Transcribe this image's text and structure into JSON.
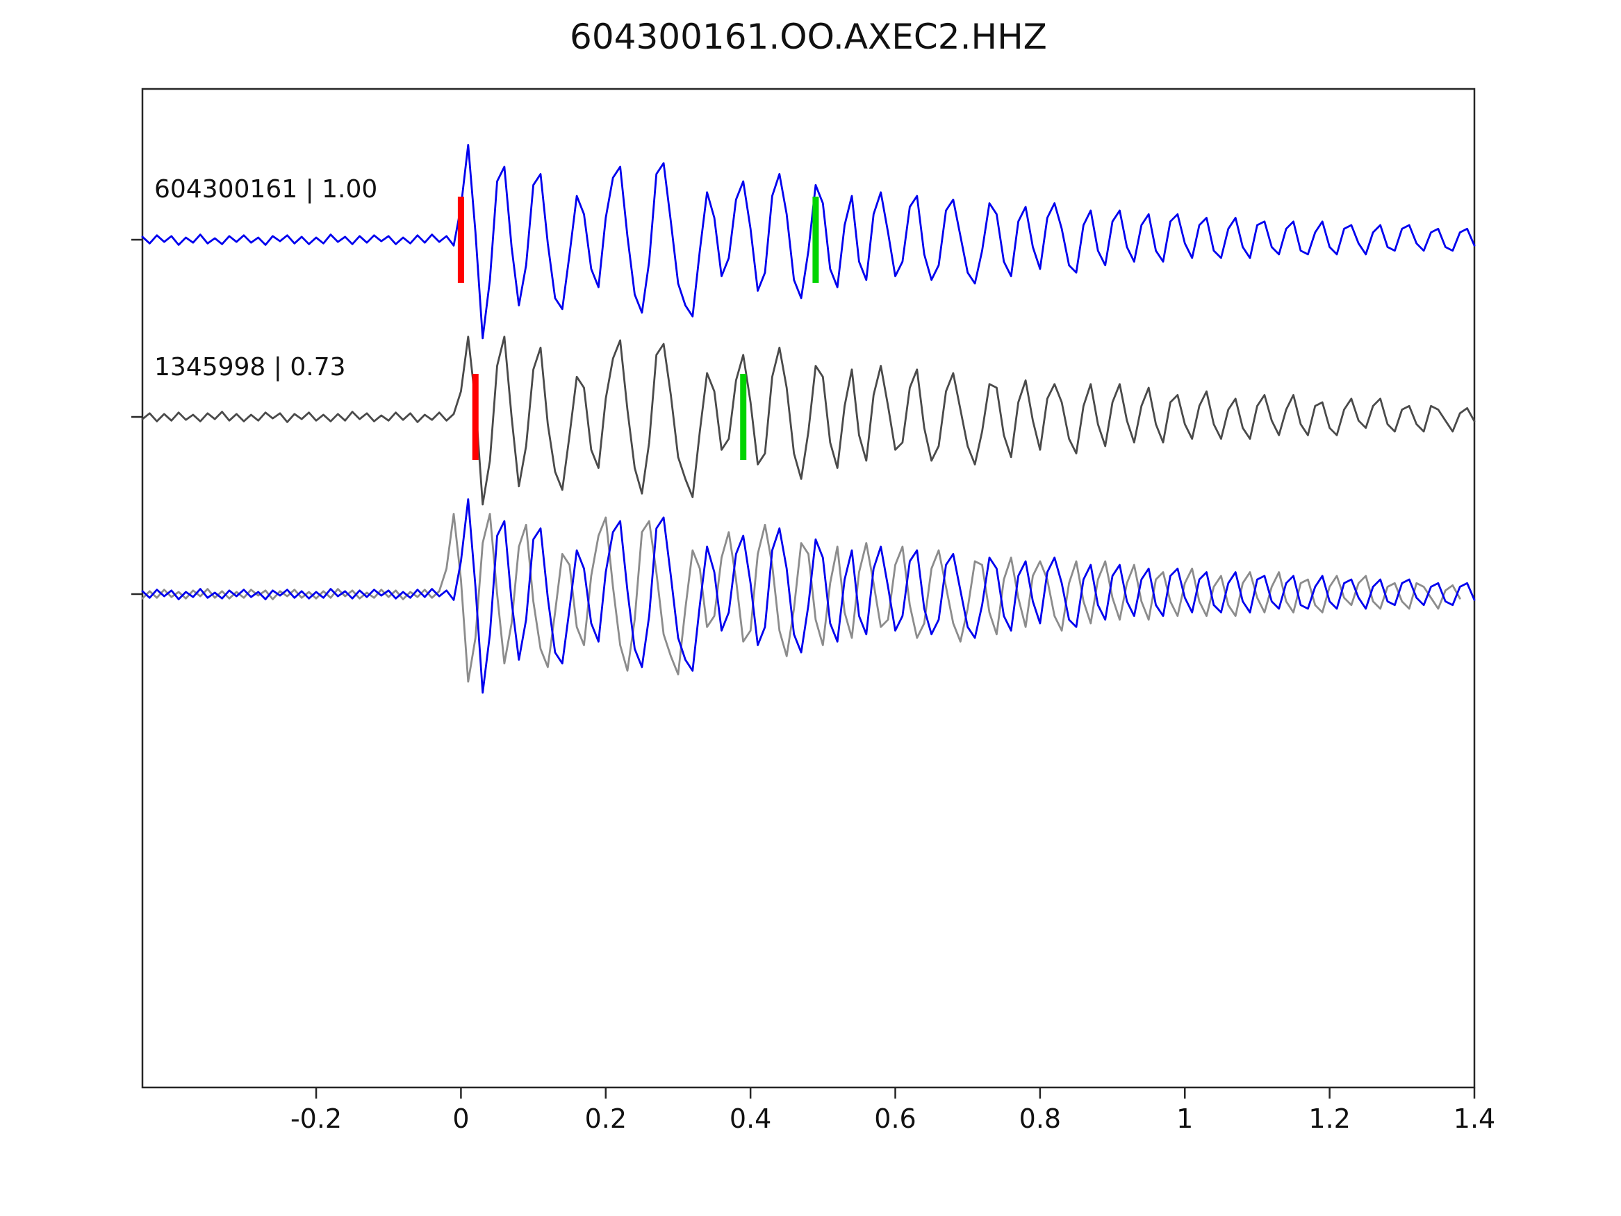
{
  "colors": {
    "trace_blue": "#0000ee",
    "trace_dark_gray": "#4a4a4a",
    "overlay_gray": "#8c8c8c",
    "pick_red": "#ff0000",
    "pick_green": "#00d400",
    "frame": "#262626",
    "text": "#111111"
  },
  "chart_data": {
    "type": "line",
    "title": "604300161.OO.AXEC2.HHZ",
    "xlabel": "",
    "ylabel": "",
    "grid": false,
    "legend": "none",
    "xlim": [
      -0.44,
      1.4
    ],
    "x_start": -0.44,
    "x_step": 0.01,
    "xticks": [
      -0.2,
      0,
      0.2,
      0.4,
      0.6,
      0.8,
      1,
      1.2,
      1.4
    ],
    "xtick_labels": [
      "-0.2",
      "0",
      "0.2",
      "0.4",
      "0.6",
      "0.8",
      "1",
      "1.2",
      "1.4"
    ],
    "rows": [
      {
        "trace": "604300161",
        "label": "604300161 | 1.00",
        "correlation": 1.0,
        "picks": [
          {
            "color": "red",
            "t": 0.0
          },
          {
            "color": "green",
            "t": 0.49
          }
        ]
      },
      {
        "trace": "1345998",
        "label": "1345998 | 0.73",
        "correlation": 0.73,
        "picks": [
          {
            "color": "red",
            "t": 0.02
          },
          {
            "color": "green",
            "t": 0.39
          }
        ]
      },
      {
        "trace": "overlay",
        "label": "",
        "align_shift": -0.02,
        "picks": []
      }
    ],
    "series": [
      {
        "name": "604300161",
        "color": "#0000ee",
        "values": [
          0.04,
          -0.05,
          0.06,
          -0.03,
          0.05,
          -0.07,
          0.03,
          -0.04,
          0.07,
          -0.05,
          0.02,
          -0.06,
          0.05,
          -0.03,
          0.06,
          -0.04,
          0.03,
          -0.07,
          0.05,
          -0.02,
          0.06,
          -0.05,
          0.04,
          -0.06,
          0.03,
          -0.05,
          0.07,
          -0.03,
          0.04,
          -0.06,
          0.05,
          -0.04,
          0.06,
          -0.02,
          0.05,
          -0.06,
          0.03,
          -0.05,
          0.06,
          -0.04,
          0.07,
          -0.03,
          0.05,
          -0.08,
          0.45,
          1.3,
          0.1,
          -1.35,
          -0.55,
          0.8,
          1.0,
          -0.1,
          -0.9,
          -0.35,
          0.75,
          0.9,
          -0.05,
          -0.8,
          -0.95,
          -0.2,
          0.6,
          0.35,
          -0.4,
          -0.65,
          0.3,
          0.85,
          1.0,
          0.05,
          -0.75,
          -1.0,
          -0.3,
          0.9,
          1.05,
          0.25,
          -0.6,
          -0.9,
          -1.05,
          -0.15,
          0.65,
          0.3,
          -0.5,
          -0.25,
          0.55,
          0.8,
          0.15,
          -0.7,
          -0.45,
          0.6,
          0.9,
          0.35,
          -0.55,
          -0.8,
          -0.15,
          0.75,
          0.5,
          -0.4,
          -0.65,
          0.2,
          0.6,
          -0.3,
          -0.55,
          0.35,
          0.65,
          0.1,
          -0.5,
          -0.3,
          0.45,
          0.6,
          -0.2,
          -0.55,
          -0.35,
          0.4,
          0.55,
          0.05,
          -0.45,
          -0.6,
          -0.15,
          0.5,
          0.35,
          -0.3,
          -0.5,
          0.25,
          0.45,
          -0.1,
          -0.4,
          0.3,
          0.5,
          0.15,
          -0.35,
          -0.45,
          0.2,
          0.4,
          -0.15,
          -0.35,
          0.25,
          0.4,
          -0.1,
          -0.3,
          0.2,
          0.35,
          -0.15,
          -0.3,
          0.25,
          0.35,
          -0.05,
          -0.25,
          0.2,
          0.3,
          -0.15,
          -0.25,
          0.15,
          0.3,
          -0.1,
          -0.25,
          0.2,
          0.25,
          -0.1,
          -0.2,
          0.15,
          0.25,
          -0.15,
          -0.2,
          0.1,
          0.25,
          -0.1,
          -0.2,
          0.15,
          0.2,
          -0.05,
          -0.2,
          0.1,
          0.2,
          -0.1,
          -0.15,
          0.15,
          0.2,
          -0.05,
          -0.15,
          0.1,
          0.15,
          -0.1,
          -0.15,
          0.1,
          0.15,
          -0.08
        ]
      },
      {
        "name": "1345998",
        "color": "#4a4a4a",
        "values": [
          -0.03,
          0.05,
          -0.06,
          0.04,
          -0.05,
          0.06,
          -0.04,
          0.03,
          -0.06,
          0.05,
          -0.03,
          0.07,
          -0.05,
          0.04,
          -0.06,
          0.03,
          -0.05,
          0.06,
          -0.02,
          0.05,
          -0.07,
          0.04,
          -0.03,
          0.06,
          -0.05,
          0.03,
          -0.06,
          0.04,
          -0.05,
          0.07,
          -0.03,
          0.05,
          -0.06,
          0.02,
          -0.05,
          0.06,
          -0.04,
          0.05,
          -0.07,
          0.03,
          -0.04,
          0.06,
          -0.05,
          0.04,
          0.35,
          1.1,
          0.2,
          -1.2,
          -0.6,
          0.7,
          1.1,
          0.0,
          -0.95,
          -0.4,
          0.65,
          0.95,
          -0.1,
          -0.75,
          -1.0,
          -0.25,
          0.55,
          0.4,
          -0.45,
          -0.7,
          0.25,
          0.8,
          1.05,
          0.1,
          -0.7,
          -1.05,
          -0.35,
          0.85,
          1.0,
          0.3,
          -0.55,
          -0.85,
          -1.1,
          -0.2,
          0.6,
          0.35,
          -0.45,
          -0.3,
          0.5,
          0.85,
          0.2,
          -0.65,
          -0.5,
          0.55,
          0.95,
          0.4,
          -0.5,
          -0.85,
          -0.2,
          0.7,
          0.55,
          -0.35,
          -0.7,
          0.15,
          0.65,
          -0.25,
          -0.6,
          0.3,
          0.7,
          0.15,
          -0.45,
          -0.35,
          0.4,
          0.65,
          -0.15,
          -0.6,
          -0.4,
          0.35,
          0.6,
          0.1,
          -0.4,
          -0.65,
          -0.2,
          0.45,
          0.4,
          -0.25,
          -0.55,
          0.2,
          0.5,
          -0.05,
          -0.45,
          0.25,
          0.45,
          0.2,
          -0.3,
          -0.5,
          0.15,
          0.45,
          -0.1,
          -0.4,
          0.2,
          0.45,
          -0.05,
          -0.35,
          0.15,
          0.4,
          -0.1,
          -0.35,
          0.2,
          0.3,
          -0.1,
          -0.3,
          0.15,
          0.35,
          -0.1,
          -0.3,
          0.1,
          0.25,
          -0.15,
          -0.3,
          0.15,
          0.3,
          -0.05,
          -0.25,
          0.1,
          0.3,
          -0.1,
          -0.25,
          0.15,
          0.2,
          -0.15,
          -0.25,
          0.1,
          0.25,
          -0.05,
          -0.15,
          0.15,
          0.25,
          -0.1,
          -0.2,
          0.1,
          0.15,
          -0.1,
          -0.2,
          0.15,
          0.1,
          -0.05,
          -0.2,
          0.05,
          0.12,
          -0.06
        ]
      }
    ]
  }
}
